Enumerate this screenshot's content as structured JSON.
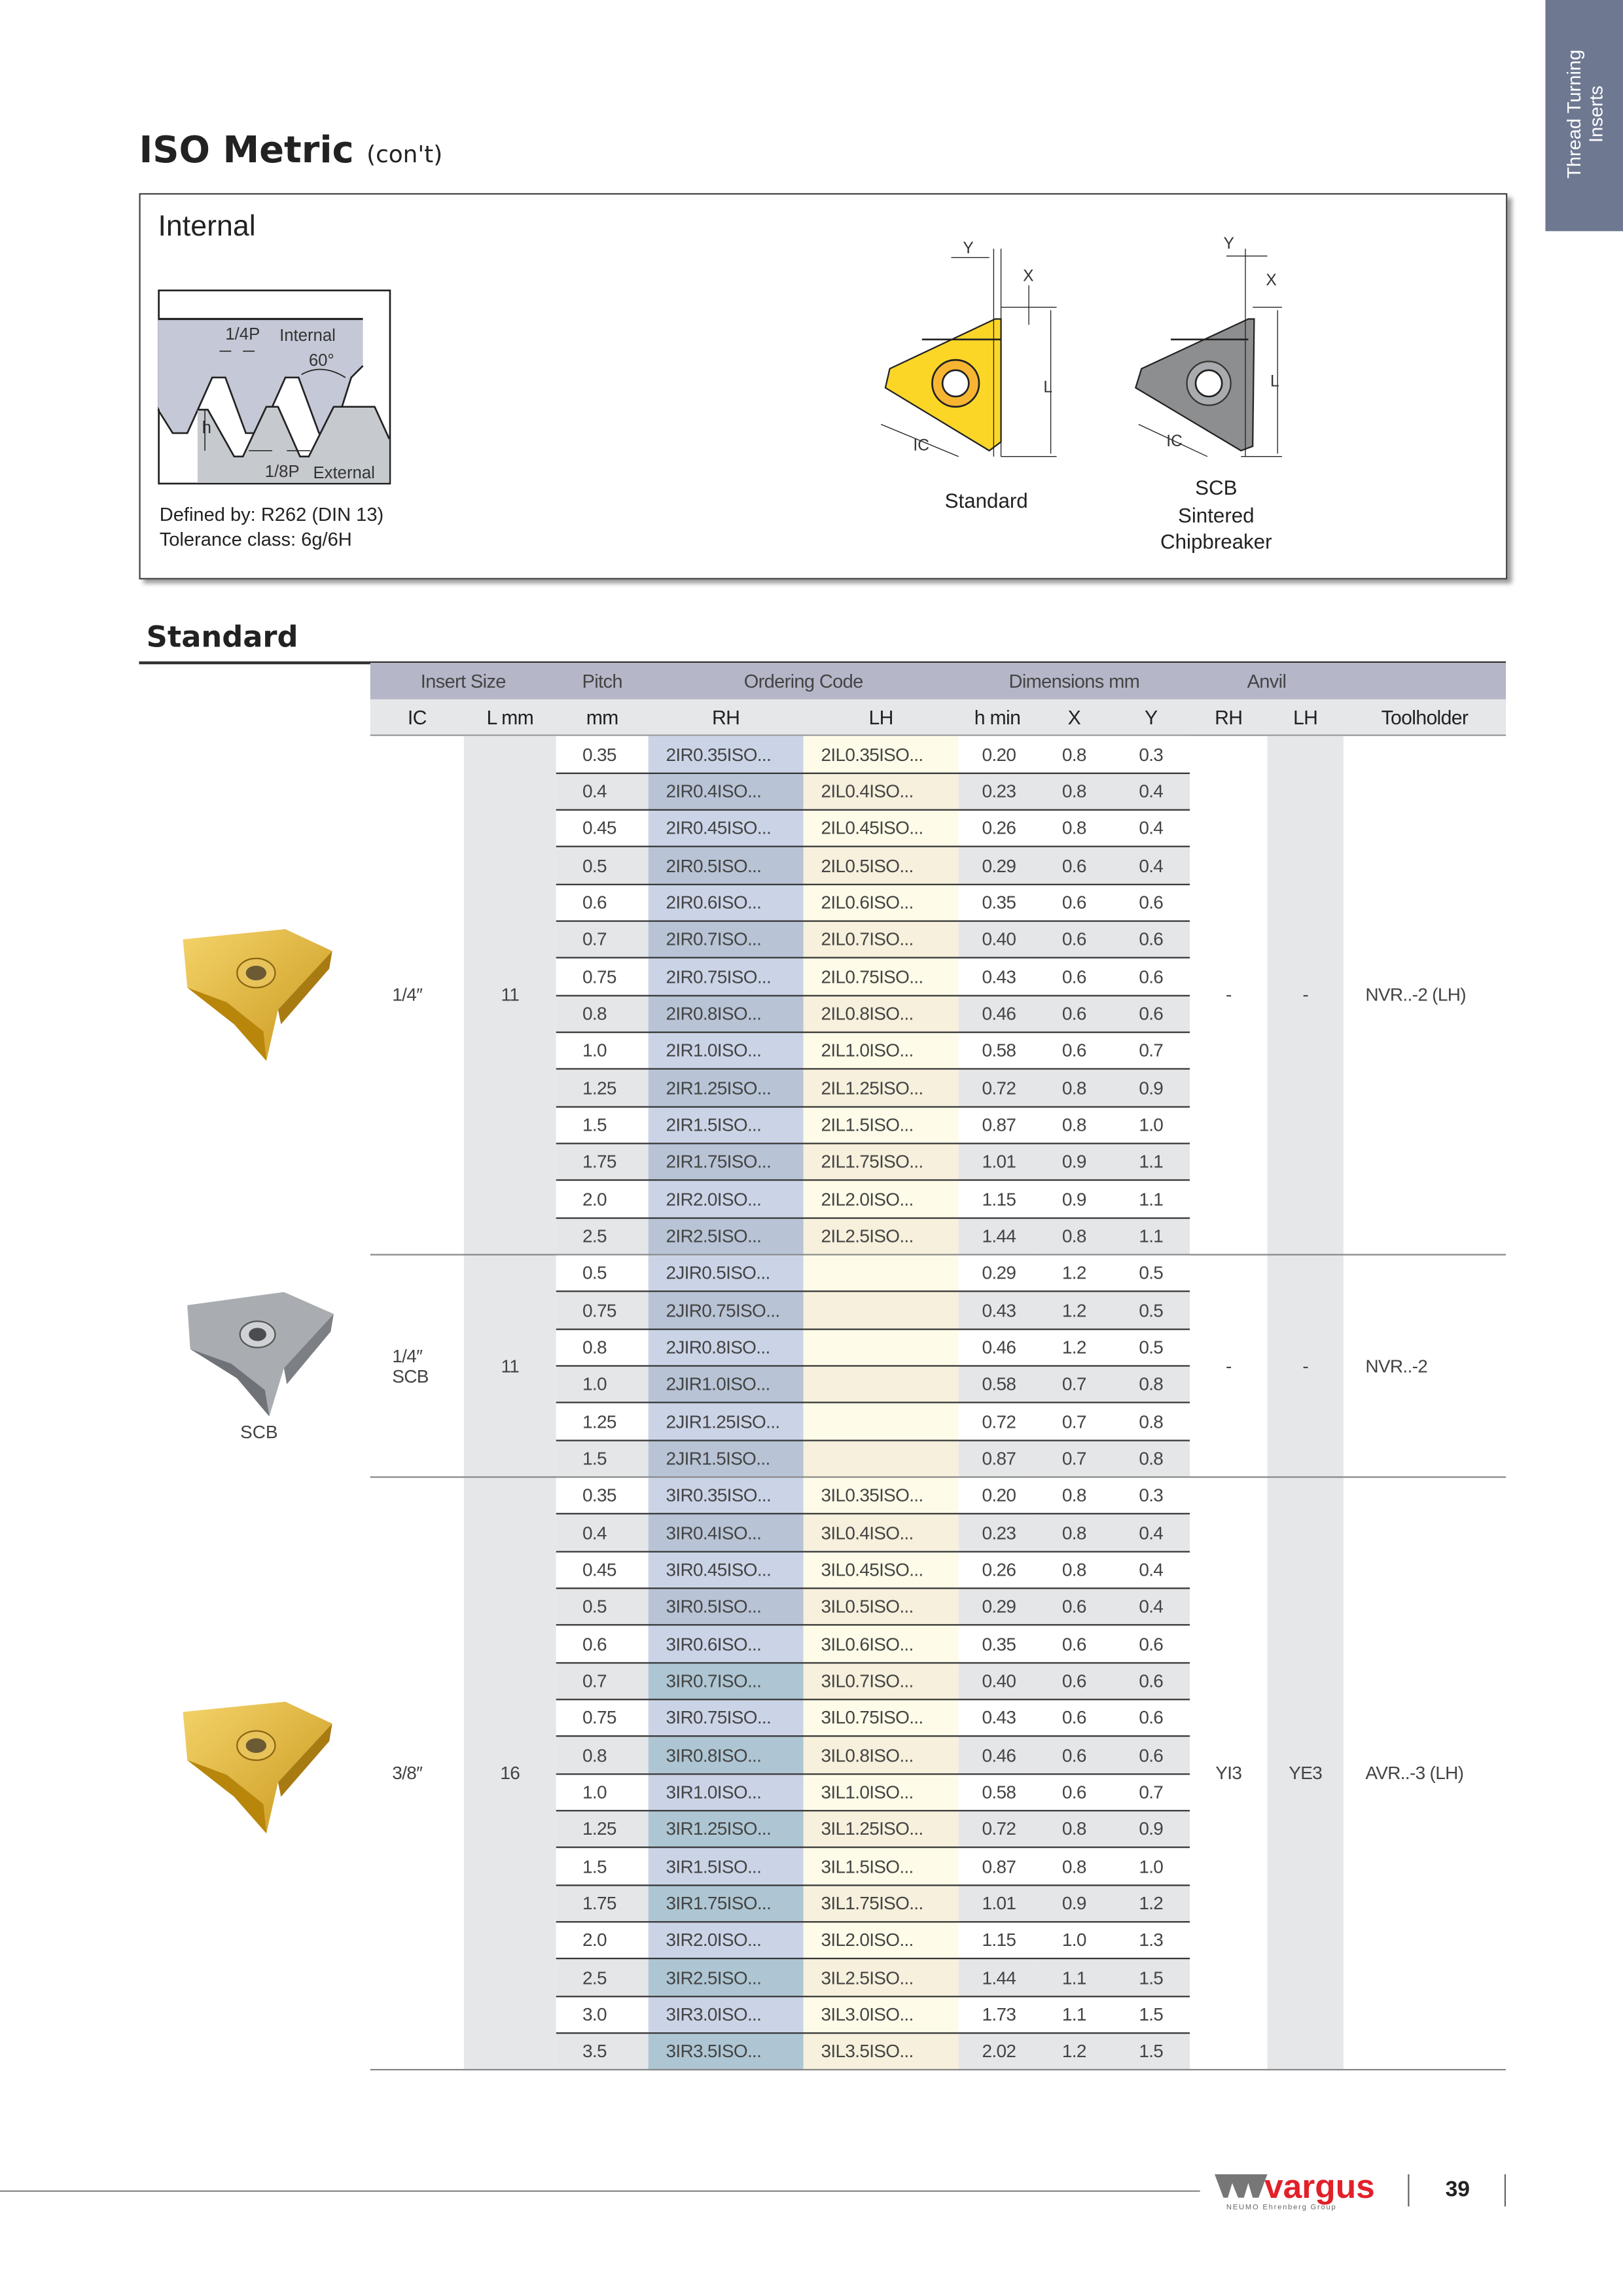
{
  "side_tab": {
    "line1": "Thread Turning",
    "line2": "Inserts",
    "color": "#6e7891"
  },
  "title": {
    "main": "ISO Metric",
    "suffix": "(con't)"
  },
  "internal_box": {
    "heading": "Internal",
    "thread_diagram": {
      "quarter_p": "1/4P",
      "internal": "Internal",
      "angle": "60°",
      "h": "h",
      "eighth_p": "1/8P",
      "external": "External"
    },
    "defined_by": "Defined by: R262 (DIN 13)",
    "tolerance": "Tolerance class: 6g/6H",
    "dim_labels": {
      "y": "Y",
      "x": "X",
      "l": "L",
      "ic": "IC"
    },
    "standard_label": "Standard",
    "scb_label": [
      "SCB",
      "Sintered",
      "Chipbreaker"
    ]
  },
  "section_heading": "Standard",
  "table": {
    "header_groups": [
      "Insert Size",
      "Pitch",
      "Ordering Code",
      "Dimensions mm",
      "Anvil"
    ],
    "columns": [
      "IC",
      "L mm",
      "mm",
      "RH",
      "LH",
      "h min",
      "X",
      "Y",
      "RH",
      "LH",
      "Toolholder"
    ],
    "colors": {
      "header": "#b5b7c8",
      "subheader": "#e6e7e9",
      "rh": "#cbd4e7",
      "lh": "#fefce8",
      "gray": "#e5e6e8"
    },
    "groups": [
      {
        "ic": "1/4″",
        "ic2": "",
        "image_label": "",
        "l": "11",
        "anvil_rh": "-",
        "anvil_lh": "-",
        "toolholder": "NVR..-2 (LH)",
        "rows": [
          {
            "pitch": "0.35",
            "rh": "2IR0.35ISO...",
            "lh": "2IL0.35ISO...",
            "hmin": "0.20",
            "x": "0.8",
            "y": "0.3"
          },
          {
            "pitch": "0.4",
            "rh": "2IR0.4ISO...",
            "lh": "2IL0.4ISO...",
            "hmin": "0.23",
            "x": "0.8",
            "y": "0.4"
          },
          {
            "pitch": "0.45",
            "rh": "2IR0.45ISO...",
            "lh": "2IL0.45ISO...",
            "hmin": "0.26",
            "x": "0.8",
            "y": "0.4"
          },
          {
            "pitch": "0.5",
            "rh": "2IR0.5ISO...",
            "lh": "2IL0.5ISO...",
            "hmin": "0.29",
            "x": "0.6",
            "y": "0.4"
          },
          {
            "pitch": "0.6",
            "rh": "2IR0.6ISO...",
            "lh": "2IL0.6ISO...",
            "hmin": "0.35",
            "x": "0.6",
            "y": "0.6"
          },
          {
            "pitch": "0.7",
            "rh": "2IR0.7ISO...",
            "lh": "2IL0.7ISO...",
            "hmin": "0.40",
            "x": "0.6",
            "y": "0.6"
          },
          {
            "pitch": "0.75",
            "rh": "2IR0.75ISO...",
            "lh": "2IL0.75ISO...",
            "hmin": "0.43",
            "x": "0.6",
            "y": "0.6"
          },
          {
            "pitch": "0.8",
            "rh": "2IR0.8ISO...",
            "lh": "2IL0.8ISO...",
            "hmin": "0.46",
            "x": "0.6",
            "y": "0.6"
          },
          {
            "pitch": "1.0",
            "rh": "2IR1.0ISO...",
            "lh": "2IL1.0ISO...",
            "hmin": "0.58",
            "x": "0.6",
            "y": "0.7"
          },
          {
            "pitch": "1.25",
            "rh": "2IR1.25ISO...",
            "lh": "2IL1.25ISO...",
            "hmin": "0.72",
            "x": "0.8",
            "y": "0.9"
          },
          {
            "pitch": "1.5",
            "rh": "2IR1.5ISO...",
            "lh": "2IL1.5ISO...",
            "hmin": "0.87",
            "x": "0.8",
            "y": "1.0"
          },
          {
            "pitch": "1.75",
            "rh": "2IR1.75ISO...",
            "lh": "2IL1.75ISO...",
            "hmin": "1.01",
            "x": "0.9",
            "y": "1.1"
          },
          {
            "pitch": "2.0",
            "rh": "2IR2.0ISO...",
            "lh": "2IL2.0ISO...",
            "hmin": "1.15",
            "x": "0.9",
            "y": "1.1"
          },
          {
            "pitch": "2.5",
            "rh": "2IR2.5ISO...",
            "lh": "2IL2.5ISO...",
            "hmin": "1.44",
            "x": "0.8",
            "y": "1.1"
          }
        ]
      },
      {
        "ic": "1/4″",
        "ic2": "SCB",
        "image_label": "SCB",
        "l": "11",
        "anvil_rh": "-",
        "anvil_lh": "-",
        "toolholder": "NVR..-2",
        "rows": [
          {
            "pitch": "0.5",
            "rh": "2JIR0.5ISO...",
            "lh": "",
            "hmin": "0.29",
            "x": "1.2",
            "y": "0.5"
          },
          {
            "pitch": "0.75",
            "rh": "2JIR0.75ISO...",
            "lh": "",
            "hmin": "0.43",
            "x": "1.2",
            "y": "0.5"
          },
          {
            "pitch": "0.8",
            "rh": "2JIR0.8ISO...",
            "lh": "",
            "hmin": "0.46",
            "x": "1.2",
            "y": "0.5"
          },
          {
            "pitch": "1.0",
            "rh": "2JIR1.0ISO...",
            "lh": "",
            "hmin": "0.58",
            "x": "0.7",
            "y": "0.8"
          },
          {
            "pitch": "1.25",
            "rh": "2JIR1.25ISO...",
            "lh": "",
            "hmin": "0.72",
            "x": "0.7",
            "y": "0.8"
          },
          {
            "pitch": "1.5",
            "rh": "2JIR1.5ISO...",
            "lh": "",
            "hmin": "0.87",
            "x": "0.7",
            "y": "0.8"
          }
        ]
      },
      {
        "ic": "3/8″",
        "ic2": "",
        "image_label": "",
        "l": "16",
        "anvil_rh": "YI3",
        "anvil_lh": "YE3",
        "toolholder": "AVR..-3 (LH)",
        "rows": [
          {
            "pitch": "0.35",
            "rh": "3IR0.35ISO...",
            "lh": "3IL0.35ISO...",
            "hmin": "0.20",
            "x": "0.8",
            "y": "0.3"
          },
          {
            "pitch": "0.4",
            "rh": "3IR0.4ISO...",
            "lh": "3IL0.4ISO...",
            "hmin": "0.23",
            "x": "0.8",
            "y": "0.4"
          },
          {
            "pitch": "0.45",
            "rh": "3IR0.45ISO...",
            "lh": "3IL0.45ISO...",
            "hmin": "0.26",
            "x": "0.8",
            "y": "0.4"
          },
          {
            "pitch": "0.5",
            "rh": "3IR0.5ISO...",
            "lh": "3IL0.5ISO...",
            "hmin": "0.29",
            "x": "0.6",
            "y": "0.4"
          },
          {
            "pitch": "0.6",
            "rh": "3IR0.6ISO...",
            "lh": "3IL0.6ISO...",
            "hmin": "0.35",
            "x": "0.6",
            "y": "0.6"
          },
          {
            "pitch": "0.7",
            "rh": "3IR0.7ISO...",
            "lh": "3IL0.7ISO...",
            "hmin": "0.40",
            "x": "0.6",
            "y": "0.6"
          },
          {
            "pitch": "0.75",
            "rh": "3IR0.75ISO...",
            "lh": "3IL0.75ISO...",
            "hmin": "0.43",
            "x": "0.6",
            "y": "0.6"
          },
          {
            "pitch": "0.8",
            "rh": "3IR0.8ISO...",
            "lh": "3IL0.8ISO...",
            "hmin": "0.46",
            "x": "0.6",
            "y": "0.6"
          },
          {
            "pitch": "1.0",
            "rh": "3IR1.0ISO...",
            "lh": "3IL1.0ISO...",
            "hmin": "0.58",
            "x": "0.6",
            "y": "0.7"
          },
          {
            "pitch": "1.25",
            "rh": "3IR1.25ISO...",
            "lh": "3IL1.25ISO...",
            "hmin": "0.72",
            "x": "0.8",
            "y": "0.9"
          },
          {
            "pitch": "1.5",
            "rh": "3IR1.5ISO...",
            "lh": "3IL1.5ISO...",
            "hmin": "0.87",
            "x": "0.8",
            "y": "1.0"
          },
          {
            "pitch": "1.75",
            "rh": "3IR1.75ISO...",
            "lh": "3IL1.75ISO...",
            "hmin": "1.01",
            "x": "0.9",
            "y": "1.2"
          },
          {
            "pitch": "2.0",
            "rh": "3IR2.0ISO...",
            "lh": "3IL2.0ISO...",
            "hmin": "1.15",
            "x": "1.0",
            "y": "1.3"
          },
          {
            "pitch": "2.5",
            "rh": "3IR2.5ISO...",
            "lh": "3IL2.5ISO...",
            "hmin": "1.44",
            "x": "1.1",
            "y": "1.5"
          },
          {
            "pitch": "3.0",
            "rh": "3IR3.0ISO...",
            "lh": "3IL3.0ISO...",
            "hmin": "1.73",
            "x": "1.1",
            "y": "1.5"
          },
          {
            "pitch": "3.5",
            "rh": "3IR3.5ISO...",
            "lh": "3IL3.5ISO...",
            "hmin": "2.02",
            "x": "1.2",
            "y": "1.5"
          }
        ]
      }
    ]
  },
  "footer": {
    "logo": "vargus",
    "logo_sub": "NEUMO Ehrenberg Group",
    "page_number": "39",
    "brand_color": "#e2202a"
  }
}
